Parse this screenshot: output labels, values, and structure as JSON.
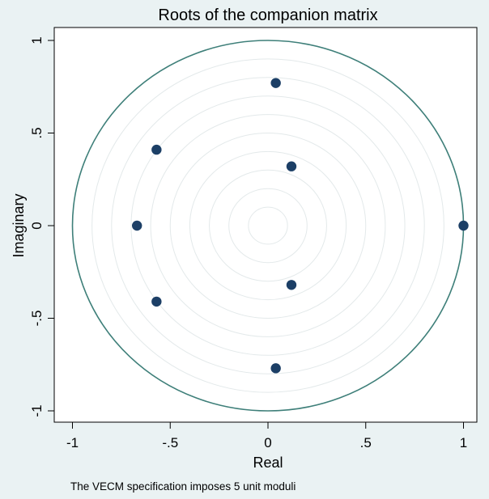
{
  "chart_data": {
    "type": "scatter",
    "title": "Roots of the companion matrix",
    "xlabel": "Real",
    "ylabel": "Imaginary",
    "note": "The VECM specification imposes 5 unit moduli",
    "xlim": [
      -1,
      1
    ],
    "ylim": [
      -1,
      1
    ],
    "xticks": [
      -1,
      -0.5,
      0,
      0.5,
      1
    ],
    "xtick_labels": [
      "-1",
      "-.5",
      "0",
      ".5",
      "1"
    ],
    "yticks": [
      -1,
      -0.5,
      0,
      0.5,
      1
    ],
    "ytick_labels": [
      "-1",
      "-.5",
      "0",
      ".5",
      "1"
    ],
    "unit_circle": true,
    "reference_circle_radii": [
      0.1,
      0.2,
      0.3,
      0.4,
      0.5,
      0.6,
      0.7,
      0.8,
      0.9
    ],
    "grid": false,
    "series": [
      {
        "x": [
          0.04,
          -0.57,
          0.12,
          -0.67,
          1.0,
          0.12,
          -0.57,
          0.04
        ],
        "y": [
          0.77,
          0.41,
          0.32,
          0.0,
          0.0,
          -0.32,
          -0.41,
          -0.77
        ]
      }
    ],
    "colors": {
      "background": "#eaf2f3",
      "plot_area": "#ffffff",
      "unit_circle": "#3e7f79",
      "reference_circles": "#e3e9ea",
      "points": "#1c3f66",
      "axes": "#000000"
    }
  }
}
